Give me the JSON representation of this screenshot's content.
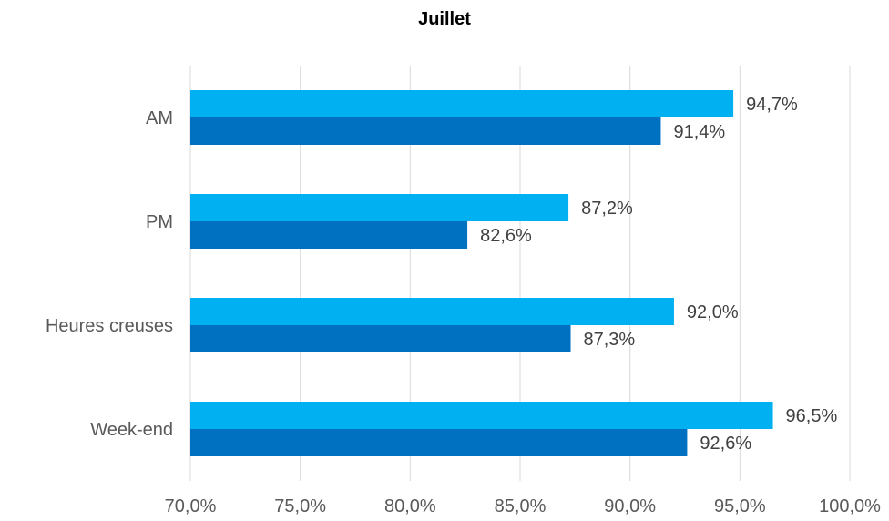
{
  "chart_data": {
    "type": "bar",
    "orientation": "horizontal",
    "title": "Juillet",
    "categories": [
      "AM",
      "PM",
      "Heures creuses",
      "Week-end"
    ],
    "series": [
      {
        "values": [
          94.7,
          87.2,
          92.0,
          96.5
        ],
        "labels": [
          "94,7%",
          "87,2%",
          "92,0%",
          "96,5%"
        ],
        "color": "#00B0F0"
      },
      {
        "values": [
          91.4,
          82.6,
          87.3,
          92.6
        ],
        "labels": [
          "91,4%",
          "82,6%",
          "87,3%",
          "92,6%"
        ],
        "color": "#0070C0"
      }
    ],
    "xlim": [
      70,
      100
    ],
    "xticks": [
      70,
      75,
      80,
      85,
      90,
      95,
      100
    ],
    "xtick_labels": [
      "70,0%",
      "75,0%",
      "80,0%",
      "85,0%",
      "90,0%",
      "95,0%",
      "100,0%"
    ],
    "grid": "vertical",
    "gridline_color": "#D9D9D9",
    "legend": "none",
    "xlabel": "",
    "ylabel": ""
  }
}
